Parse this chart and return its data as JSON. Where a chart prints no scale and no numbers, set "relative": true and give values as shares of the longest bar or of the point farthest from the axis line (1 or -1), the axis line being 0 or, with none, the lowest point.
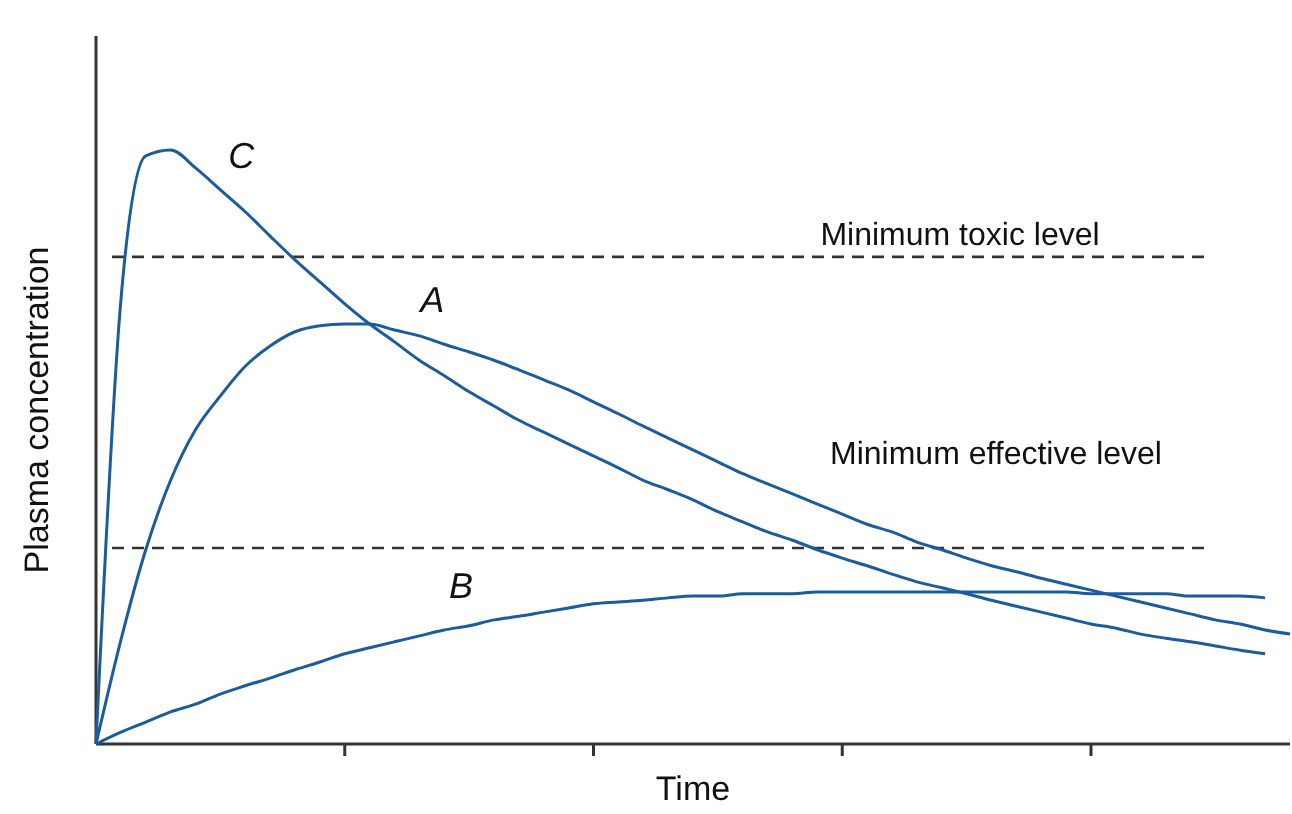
{
  "chart_data": {
    "type": "line",
    "relative": true,
    "xlabel": "Time",
    "ylabel": "Plasma concentration",
    "legend": false,
    "categories": [
      null,
      null,
      null,
      null,
      null,
      null,
      null,
      null,
      null,
      null,
      null,
      null,
      null,
      null,
      null,
      null,
      null,
      null,
      null,
      null,
      null,
      null,
      null,
      null,
      null,
      null,
      null,
      null,
      null,
      null,
      null,
      null,
      null,
      null,
      null,
      null,
      null,
      null,
      null,
      null,
      null,
      null,
      null,
      null,
      null,
      null,
      null,
      null,
      null
    ],
    "series": [
      {
        "name": "A",
        "color": "#1a5c9c",
        "values": [
          0,
          0.175,
          0.327,
          0.444,
          0.529,
          0.586,
          0.636,
          0.67,
          0.694,
          0.704,
          0.707,
          0.707,
          0.697,
          0.687,
          0.673,
          0.66,
          0.646,
          0.63,
          0.613,
          0.596,
          0.576,
          0.556,
          0.535,
          0.515,
          0.495,
          0.475,
          0.455,
          0.438,
          0.421,
          0.404,
          0.387,
          0.37,
          0.357,
          0.34,
          0.327,
          0.313,
          0.3,
          0.29,
          0.279,
          0.269,
          0.259,
          0.249,
          0.239,
          0.229,
          0.219,
          0.209,
          0.202,
          0.192,
          0.185
        ]
      },
      {
        "name": "B",
        "color": "#1a5c9c",
        "values": [
          0,
          0.02,
          0.037,
          0.054,
          0.067,
          0.084,
          0.098,
          0.111,
          0.125,
          0.138,
          0.152,
          0.162,
          0.172,
          0.182,
          0.192,
          0.199,
          0.209,
          0.215,
          0.222,
          0.229,
          0.236,
          0.239,
          0.242,
          0.246,
          0.249,
          0.249,
          0.253,
          0.253,
          0.253,
          0.256,
          0.256,
          0.256,
          0.256,
          0.256,
          0.256,
          0.256,
          0.256,
          0.256,
          0.256,
          0.256,
          0.253,
          0.253,
          0.253,
          0.253,
          0.249,
          0.249,
          0.249,
          0.246,
          null
        ]
      },
      {
        "name": "C",
        "color": "#1a5c9c",
        "values": [
          0,
          0.747,
          0.99,
          1.0,
          0.97,
          0.933,
          0.896,
          0.855,
          0.815,
          0.778,
          0.741,
          0.707,
          0.677,
          0.646,
          0.62,
          0.593,
          0.569,
          0.545,
          0.525,
          0.505,
          0.485,
          0.465,
          0.444,
          0.428,
          0.411,
          0.391,
          0.374,
          0.357,
          0.343,
          0.327,
          0.313,
          0.3,
          0.286,
          0.273,
          0.263,
          0.253,
          0.242,
          0.232,
          0.222,
          0.212,
          0.202,
          0.195,
          0.185,
          0.178,
          0.172,
          0.165,
          0.158,
          0.152,
          null
        ]
      }
    ],
    "ref_lines": [
      {
        "axis": "y",
        "value": 0.82,
        "label": "Minimum toxic level",
        "color": "#333333",
        "line_style": "dashed"
      },
      {
        "axis": "y",
        "value": 0.33,
        "label": "Minimum effective level",
        "color": "#333333",
        "line_style": "dashed"
      }
    ]
  }
}
